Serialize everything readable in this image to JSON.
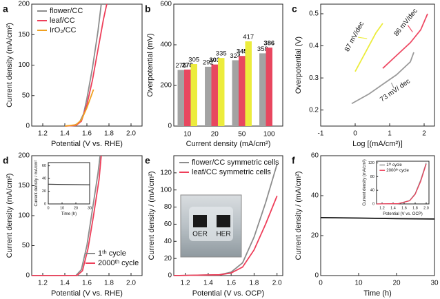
{
  "chart_data": [
    {
      "panel": "a",
      "type": "line",
      "xlabel": "Potential (V vs. RHE)",
      "ylabel": "Current density (mA/cm²)",
      "xlim": [
        1.1,
        2.1
      ],
      "xticks": [
        1.2,
        1.4,
        1.6,
        1.8,
        {
          "value": 2,
          "label": "2.0"
        }
      ],
      "ylim": [
        0,
        200
      ],
      "yticks": [
        0,
        50,
        100,
        150,
        200
      ],
      "legend": "upper left",
      "series": [
        {
          "name": "flower/CC",
          "color": "#8c8c8c",
          "x": [
            1.4,
            1.48,
            1.53,
            1.57,
            1.6,
            1.65,
            1.7,
            1.73
          ],
          "values": [
            0,
            1,
            5,
            20,
            45,
            95,
            155,
            200
          ]
        },
        {
          "name": "leaf/CC",
          "color": "#ee3f5a",
          "x": [
            1.4,
            1.5,
            1.55,
            1.6,
            1.65,
            1.7,
            1.75,
            1.78
          ],
          "values": [
            0,
            1,
            8,
            35,
            75,
            125,
            175,
            200
          ]
        },
        {
          "name": "IrO₂/CC",
          "color": "#f0a020",
          "x": [
            1.4,
            1.5,
            1.55,
            1.6,
            1.63,
            1.66
          ],
          "values": [
            0,
            2,
            10,
            30,
            45,
            60
          ]
        }
      ]
    },
    {
      "panel": "b",
      "type": "bar",
      "xlabel": "Current density (mA/cm²)",
      "ylabel": "Overpotential (mV)",
      "categories": [
        "10",
        "20",
        "50",
        "100"
      ],
      "ylim": [
        0,
        600
      ],
      "yticks": [
        0,
        200,
        400,
        600
      ],
      "series": [
        {
          "color": "#a3a3a3",
          "values": [
            276,
            292,
            324,
            358
          ]
        },
        {
          "color": "#e8475f",
          "values": [
            278,
            303,
            345,
            386
          ]
        },
        {
          "color": "#ecec3c",
          "values": [
            305,
            335,
            417,
            null
          ]
        }
      ]
    },
    {
      "panel": "c",
      "type": "line",
      "xlabel": "Log [(mA/cm²)]",
      "ylabel": "Overpotential (V)",
      "xlim": [
        -1,
        2.3
      ],
      "xticks": [
        -1,
        0,
        1,
        2
      ],
      "ylim": [
        0.15,
        0.53
      ],
      "yticks": [
        0.2,
        0.3,
        0.4,
        0.5
      ],
      "series": [
        {
          "color": "#ecec3c",
          "annotation": "87 mV/dec",
          "x": [
            0,
            0.2,
            0.4,
            0.6,
            0.8
          ],
          "values": [
            0.32,
            0.36,
            0.4,
            0.44,
            0.47
          ]
        },
        {
          "color": "#ee4a64",
          "annotation": "86 mV/dec",
          "x": [
            0.8,
            1.2,
            1.6,
            1.9,
            2.1
          ],
          "values": [
            0.33,
            0.37,
            0.41,
            0.45,
            0.5
          ]
        },
        {
          "color": "#9a9a9a",
          "annotation": "73 mV/ dec",
          "x": [
            -0.1,
            0.4,
            0.8,
            1.2,
            1.6,
            1.7
          ],
          "values": [
            0.22,
            0.25,
            0.28,
            0.31,
            0.35,
            0.38
          ]
        }
      ]
    },
    {
      "panel": "d",
      "type": "line",
      "xlabel": "Potential (V vs. RHE)",
      "ylabel": "Current density (mA/cm²)",
      "xlim": [
        1.1,
        2.1
      ],
      "xticks": [
        1.2,
        1.4,
        1.6,
        1.8,
        {
          "value": 2,
          "label": "2.0"
        }
      ],
      "ylim": [
        0,
        200
      ],
      "yticks": [
        0,
        50,
        100,
        150,
        200
      ],
      "legend": "lower right",
      "series": [
        {
          "name": "1ᵗʰ cycle",
          "color": "#8c8c8c",
          "x": [
            1.1,
            1.5,
            1.55,
            1.6,
            1.65,
            1.7,
            1.72
          ],
          "values": [
            0,
            0,
            10,
            50,
            110,
            170,
            200
          ]
        },
        {
          "name": "2000ᵗʰ cycle",
          "color": "#ee3f5a",
          "x": [
            1.1,
            1.51,
            1.56,
            1.61,
            1.66,
            1.71,
            1.73
          ],
          "values": [
            0,
            0,
            8,
            45,
            100,
            160,
            200
          ]
        }
      ],
      "inset": {
        "type": "line",
        "xlabel": "Time (h)",
        "ylabel": "Current density / mA/cm²",
        "xlim": [
          0,
          30
        ],
        "xticks": [
          0,
          10,
          20,
          30
        ],
        "ylim": [
          0,
          65
        ],
        "yticks": [
          0,
          20,
          40,
          60
        ],
        "series": [
          {
            "color": "#333333",
            "x": [
              0,
              10,
              20,
              30
            ],
            "values": [
              31,
              30.6,
              30.3,
              30
            ]
          }
        ]
      }
    },
    {
      "panel": "e",
      "type": "line",
      "xlabel": "Potential (V vs. OCP)",
      "ylabel": "Current density / (mA/cm²)",
      "xlim": [
        1.1,
        2.05
      ],
      "xticks": [
        1.2,
        1.4,
        1.6,
        1.8,
        {
          "value": 2,
          "label": "2.0"
        }
      ],
      "ylim": [
        0,
        140
      ],
      "yticks": [
        0,
        20,
        40,
        60,
        80,
        100,
        120
      ],
      "legend": "upper left",
      "inset_labels": [
        "OER",
        "HER"
      ],
      "series": [
        {
          "name": "flower/CC symmetric cells",
          "color": "#8c8c8c",
          "x": [
            1.1,
            1.5,
            1.6,
            1.7,
            1.8,
            1.9,
            2.0
          ],
          "values": [
            0,
            1,
            4,
            15,
            45,
            85,
            130
          ]
        },
        {
          "name": "leaf/CC symmetric cells",
          "color": "#ee3f5a",
          "x": [
            1.1,
            1.5,
            1.6,
            1.7,
            1.8,
            1.9,
            2.0
          ],
          "values": [
            0,
            1,
            3,
            10,
            30,
            60,
            93
          ]
        }
      ]
    },
    {
      "panel": "f",
      "type": "line",
      "xlabel": "Time (h)",
      "ylabel": "Current density / (mA/cm²)",
      "xlim": [
        0,
        30
      ],
      "xticks": [
        0,
        10,
        20,
        30
      ],
      "ylim": [
        0,
        60
      ],
      "yticks": [
        0,
        20,
        40,
        60
      ],
      "series": [
        {
          "color": "#111111",
          "x": [
            0,
            10,
            20,
            30
          ],
          "values": [
            29,
            28.8,
            28.5,
            28.3
          ]
        }
      ],
      "inset": {
        "type": "line",
        "xlabel": "Potential (V vs. OCP)",
        "ylabel": "Current density (mA/cm²)",
        "xlim": [
          1.1,
          2.05
        ],
        "xticks": [
          1.2,
          1.4,
          1.6,
          1.8,
          {
            "value": 2,
            "label": "2.0"
          }
        ],
        "ylim": [
          0,
          125
        ],
        "yticks": [
          0,
          40,
          80,
          120
        ],
        "legend": "upper left",
        "series": [
          {
            "name": "1ᵗʰ cycle",
            "color": "#8c8c8c",
            "x": [
              1.1,
              1.5,
              1.7,
              1.8,
              1.9,
              2.0
            ],
            "values": [
              0,
              1,
              10,
              30,
              70,
              120
            ]
          },
          {
            "name": "2000ᵗʰ cycle",
            "color": "#ee3f5a",
            "x": [
              1.1,
              1.5,
              1.7,
              1.8,
              1.9,
              2.0
            ],
            "values": [
              0,
              1,
              9,
              28,
              66,
              117
            ]
          }
        ]
      }
    }
  ]
}
